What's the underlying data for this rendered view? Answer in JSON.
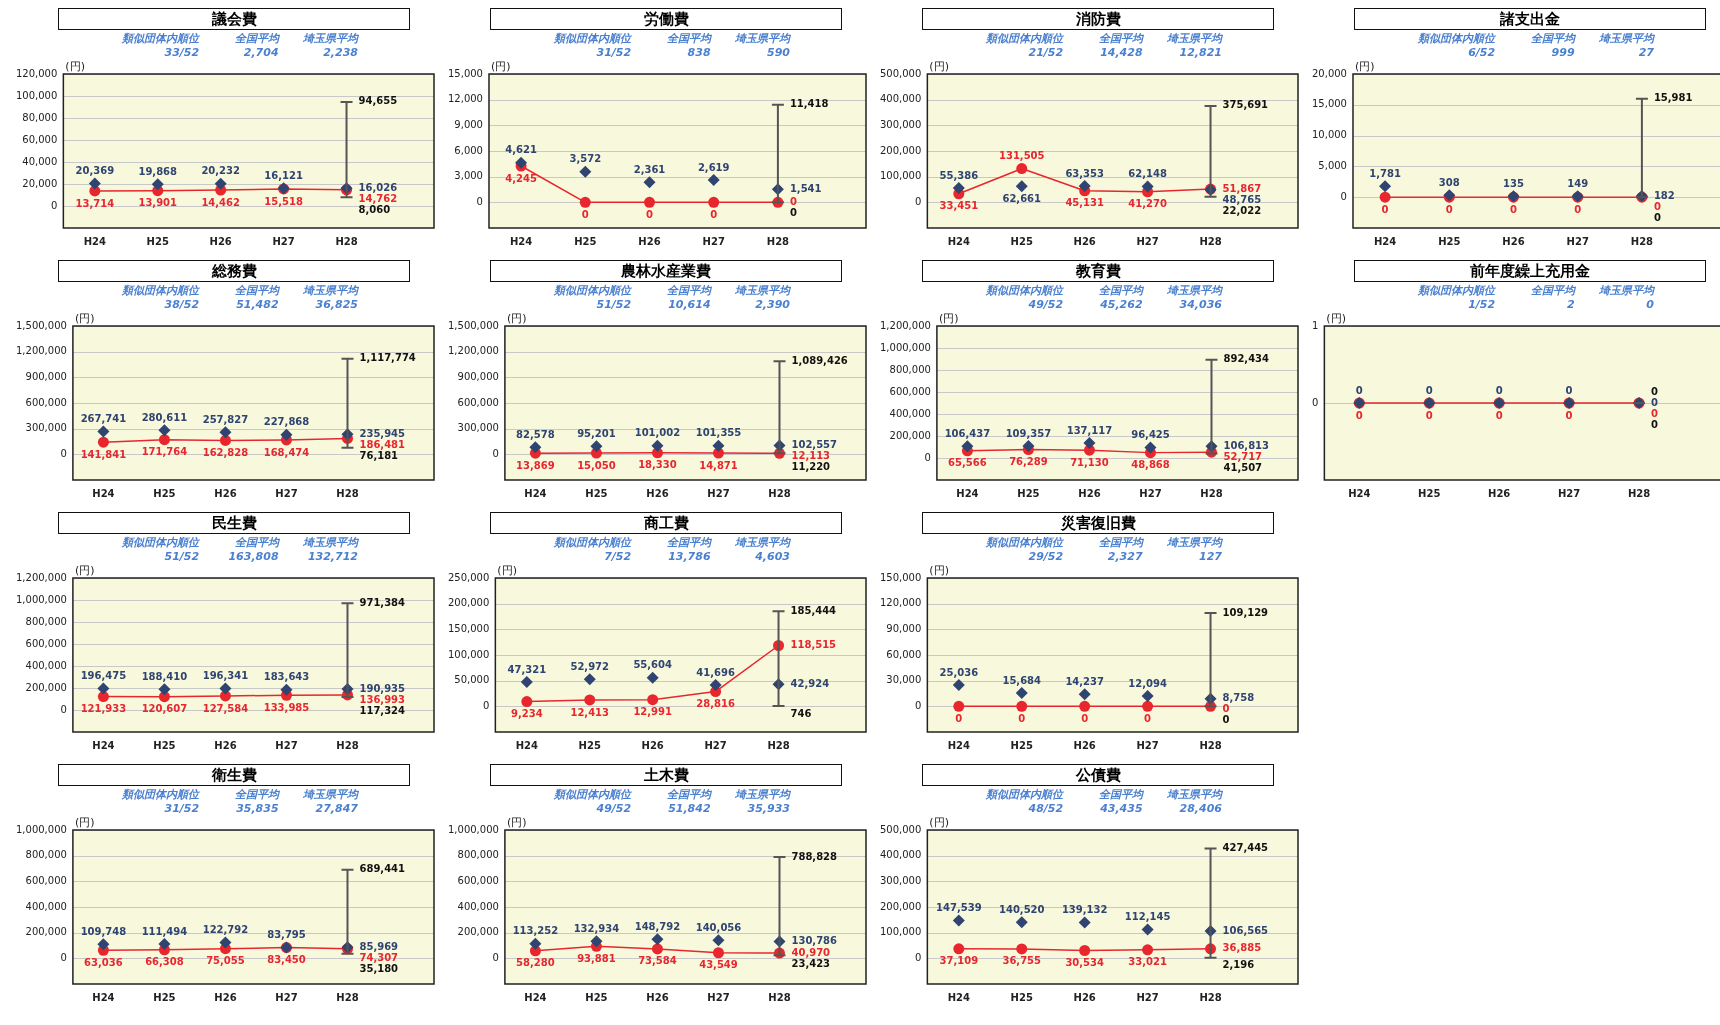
{
  "chart_data": [
    {
      "type": "line",
      "title": "議会費",
      "ylabel": "(円)",
      "categories": [
        "H24",
        "H25",
        "H26",
        "H27",
        "H28"
      ],
      "ylim": [
        -20000,
        120000
      ],
      "yticks": [
        {
          "value": 0,
          "label": "0"
        },
        {
          "value": 20000,
          "label": "20,000"
        },
        {
          "value": 40000,
          "label": "40,000"
        },
        {
          "value": 60000,
          "label": "60,000"
        },
        {
          "value": 80000,
          "label": "80,000"
        },
        {
          "value": 100000,
          "label": "100,000"
        },
        {
          "value": 120000,
          "label": "120,000"
        }
      ],
      "grid": "y",
      "legend": false,
      "series": [
        {
          "type": "scatter",
          "marker": "diamond",
          "color": "#2f4470",
          "values": [
            20369,
            19868,
            20232,
            16121,
            16026
          ],
          "value_labels": [
            "20,369",
            "19,868",
            "20,232",
            "16,121",
            "16,026"
          ],
          "errors": [
            null,
            null,
            null,
            null,
            [
              8060,
              94655
            ]
          ]
        },
        {
          "type": "line",
          "marker": "circle",
          "color": "#e8262e",
          "values": [
            13714,
            13901,
            14462,
            15518,
            14762
          ],
          "value_labels": [
            "13,714",
            "13,901",
            "14,462",
            "15,518",
            "14,762"
          ]
        }
      ],
      "annotations": [
        "類似団体内順位",
        "全国平均",
        "埼玉県平均",
        "33/52",
        "2,704",
        "2,238",
        {
          "text": "94,655",
          "x": "H28",
          "y": 94655
        },
        {
          "text": "8,060",
          "x": "H28",
          "y": 8060
        }
      ]
    },
    {
      "type": "line",
      "title": "労働費",
      "ylabel": "(円)",
      "categories": [
        "H24",
        "H25",
        "H26",
        "H27",
        "H28"
      ],
      "ylim": [
        -3000,
        15000
      ],
      "yticks": [
        {
          "value": 0,
          "label": "0"
        },
        {
          "value": 3000,
          "label": "3,000"
        },
        {
          "value": 6000,
          "label": "6,000"
        },
        {
          "value": 9000,
          "label": "9,000"
        },
        {
          "value": 12000,
          "label": "12,000"
        },
        {
          "value": 15000,
          "label": "15,000"
        }
      ],
      "grid": "y",
      "legend": false,
      "series": [
        {
          "type": "scatter",
          "marker": "diamond",
          "color": "#2f4470",
          "values": [
            4621,
            3572,
            2361,
            2619,
            1541
          ],
          "value_labels": [
            "4,621",
            "3,572",
            "2,361",
            "2,619",
            "1,541"
          ],
          "errors": [
            null,
            null,
            null,
            null,
            [
              0,
              11418
            ]
          ]
        },
        {
          "type": "line",
          "marker": "circle",
          "color": "#e8262e",
          "values": [
            4245,
            0,
            0,
            0,
            0
          ],
          "value_labels": [
            "4,245",
            "0",
            "0",
            "0",
            "0"
          ]
        }
      ],
      "annotations": [
        "類似団体内順位",
        "全国平均",
        "埼玉県平均",
        "31/52",
        "838",
        "590",
        {
          "text": "11,418",
          "x": "H28",
          "y": 11418
        },
        {
          "text": "0",
          "x": "H28",
          "y": 0
        }
      ]
    },
    {
      "type": "line",
      "title": "消防費",
      "ylabel": "(円)",
      "categories": [
        "H24",
        "H25",
        "H26",
        "H27",
        "H28"
      ],
      "ylim": [
        -100000,
        500000
      ],
      "yticks": [
        {
          "value": 0,
          "label": "0"
        },
        {
          "value": 100000,
          "label": "100,000"
        },
        {
          "value": 200000,
          "label": "200,000"
        },
        {
          "value": 300000,
          "label": "300,000"
        },
        {
          "value": 400000,
          "label": "400,000"
        },
        {
          "value": 500000,
          "label": "500,000"
        }
      ],
      "grid": "y",
      "legend": false,
      "series": [
        {
          "type": "scatter",
          "marker": "diamond",
          "color": "#2f4470",
          "values": [
            55386,
            62661,
            63353,
            62148,
            48765
          ],
          "value_labels": [
            "55,386",
            "62,661",
            "63,353",
            "62,148",
            "48,765"
          ],
          "errors": [
            null,
            null,
            null,
            null,
            [
              22022,
              375691
            ]
          ]
        },
        {
          "type": "line",
          "marker": "circle",
          "color": "#e8262e",
          "values": [
            33451,
            131505,
            45131,
            41270,
            51867
          ],
          "value_labels": [
            "33,451",
            "131,505",
            "45,131",
            "41,270",
            "51,867"
          ]
        }
      ],
      "annotations": [
        "類似団体内順位",
        "全国平均",
        "埼玉県平均",
        "21/52",
        "14,428",
        "12,821",
        {
          "text": "375,691",
          "x": "H28",
          "y": 375691
        },
        {
          "text": "22,022",
          "x": "H28",
          "y": 22022
        }
      ]
    },
    {
      "type": "line",
      "title": "諸支出金",
      "ylabel": "(円)",
      "categories": [
        "H24",
        "H25",
        "H26",
        "H27",
        "H28"
      ],
      "ylim": [
        -5000,
        20000
      ],
      "yticks": [
        {
          "value": 0,
          "label": "0"
        },
        {
          "value": 5000,
          "label": "5,000"
        },
        {
          "value": 10000,
          "label": "10,000"
        },
        {
          "value": 15000,
          "label": "15,000"
        },
        {
          "value": 20000,
          "label": "20,000"
        }
      ],
      "grid": "y",
      "legend": false,
      "series": [
        {
          "type": "scatter",
          "marker": "diamond",
          "color": "#2f4470",
          "values": [
            1781,
            308,
            135,
            149,
            182
          ],
          "value_labels": [
            "1,781",
            "308",
            "135",
            "149",
            "182"
          ],
          "errors": [
            null,
            null,
            null,
            null,
            [
              0,
              15981
            ]
          ]
        },
        {
          "type": "line",
          "marker": "circle",
          "color": "#e8262e",
          "values": [
            0,
            0,
            0,
            0,
            0
          ],
          "value_labels": [
            "0",
            "0",
            "0",
            "0",
            "0"
          ]
        }
      ],
      "annotations": [
        "類似団体内順位",
        "全国平均",
        "埼玉県平均",
        "6/52",
        "999",
        "27",
        {
          "text": "15,981",
          "x": "H28",
          "y": 15981
        },
        {
          "text": "0",
          "x": "H28",
          "y": 0
        }
      ]
    },
    {
      "type": "line",
      "title": "総務費",
      "ylabel": "(円)",
      "categories": [
        "H24",
        "H25",
        "H26",
        "H27",
        "H28"
      ],
      "ylim": [
        -300000,
        1500000
      ],
      "yticks": [
        {
          "value": 0,
          "label": "0"
        },
        {
          "value": 300000,
          "label": "300,000"
        },
        {
          "value": 600000,
          "label": "600,000"
        },
        {
          "value": 900000,
          "label": "900,000"
        },
        {
          "value": 1200000,
          "label": "1,200,000"
        },
        {
          "value": 1500000,
          "label": "1,500,000"
        }
      ],
      "grid": "y",
      "legend": false,
      "series": [
        {
          "type": "scatter",
          "marker": "diamond",
          "color": "#2f4470",
          "values": [
            267741,
            280611,
            257827,
            227868,
            235945
          ],
          "value_labels": [
            "267,741",
            "280,611",
            "257,827",
            "227,868",
            "235,945"
          ],
          "errors": [
            null,
            null,
            null,
            null,
            [
              76181,
              1117774
            ]
          ]
        },
        {
          "type": "line",
          "marker": "circle",
          "color": "#e8262e",
          "values": [
            141841,
            171764,
            162828,
            168474,
            186481
          ],
          "value_labels": [
            "141,841",
            "171,764",
            "162,828",
            "168,474",
            "186,481"
          ]
        }
      ],
      "annotations": [
        "類似団体内順位",
        "全国平均",
        "埼玉県平均",
        "38/52",
        "51,482",
        "36,825",
        {
          "text": "1,117,774",
          "x": "H28",
          "y": 1117774
        },
        {
          "text": "76,181",
          "x": "H28",
          "y": 76181
        }
      ]
    },
    {
      "type": "line",
      "title": "農林水産業費",
      "ylabel": "(円)",
      "categories": [
        "H24",
        "H25",
        "H26",
        "H27",
        "H28"
      ],
      "ylim": [
        -300000,
        1500000
      ],
      "yticks": [
        {
          "value": 0,
          "label": "0"
        },
        {
          "value": 300000,
          "label": "300,000"
        },
        {
          "value": 600000,
          "label": "600,000"
        },
        {
          "value": 900000,
          "label": "900,000"
        },
        {
          "value": 1200000,
          "label": "1,200,000"
        },
        {
          "value": 1500000,
          "label": "1,500,000"
        }
      ],
      "grid": "y",
      "legend": false,
      "series": [
        {
          "type": "scatter",
          "marker": "diamond",
          "color": "#2f4470",
          "values": [
            82578,
            95201,
            101002,
            101355,
            102557
          ],
          "value_labels": [
            "82,578",
            "95,201",
            "101,002",
            "101,355",
            "102,557"
          ],
          "errors": [
            null,
            null,
            null,
            null,
            [
              11220,
              1089426
            ]
          ]
        },
        {
          "type": "line",
          "marker": "circle",
          "color": "#e8262e",
          "values": [
            13869,
            15050,
            18330,
            14871,
            12113
          ],
          "value_labels": [
            "13,869",
            "15,050",
            "18,330",
            "14,871",
            "12,113"
          ]
        }
      ],
      "annotations": [
        "類似団体内順位",
        "全国平均",
        "埼玉県平均",
        "51/52",
        "10,614",
        "2,390",
        {
          "text": "1,089,426",
          "x": "H28",
          "y": 1089426
        },
        {
          "text": "11,220",
          "x": "H28",
          "y": 11220
        }
      ]
    },
    {
      "type": "line",
      "title": "教育費",
      "ylabel": "(円)",
      "categories": [
        "H24",
        "H25",
        "H26",
        "H27",
        "H28"
      ],
      "ylim": [
        -200000,
        1200000
      ],
      "yticks": [
        {
          "value": 0,
          "label": "0"
        },
        {
          "value": 200000,
          "label": "200,000"
        },
        {
          "value": 400000,
          "label": "400,000"
        },
        {
          "value": 600000,
          "label": "600,000"
        },
        {
          "value": 800000,
          "label": "800,000"
        },
        {
          "value": 1000000,
          "label": "1,000,000"
        },
        {
          "value": 1200000,
          "label": "1,200,000"
        }
      ],
      "grid": "y",
      "legend": false,
      "series": [
        {
          "type": "scatter",
          "marker": "diamond",
          "color": "#2f4470",
          "values": [
            106437,
            109357,
            137117,
            96425,
            106813
          ],
          "value_labels": [
            "106,437",
            "109,357",
            "137,117",
            "96,425",
            "106,813"
          ],
          "errors": [
            null,
            null,
            null,
            null,
            [
              41507,
              892434
            ]
          ]
        },
        {
          "type": "line",
          "marker": "circle",
          "color": "#e8262e",
          "values": [
            65566,
            76289,
            71130,
            48868,
            52717
          ],
          "value_labels": [
            "65,566",
            "76,289",
            "71,130",
            "48,868",
            "52,717"
          ]
        }
      ],
      "annotations": [
        "類似団体内順位",
        "全国平均",
        "埼玉県平均",
        "49/52",
        "45,262",
        "34,036",
        {
          "text": "892,434",
          "x": "H28",
          "y": 892434
        },
        {
          "text": "41,507",
          "x": "H28",
          "y": 41507
        }
      ]
    },
    {
      "type": "line",
      "title": "前年度繰上充用金",
      "ylabel": "(円)",
      "categories": [
        "H24",
        "H25",
        "H26",
        "H27",
        "H28"
      ],
      "ylim": [
        -1,
        1
      ],
      "yticks": [
        {
          "value": 0,
          "label": "0"
        },
        {
          "value": 1,
          "label": "1"
        }
      ],
      "grid": "y",
      "legend": false,
      "series": [
        {
          "type": "scatter",
          "marker": "diamond",
          "color": "#2f4470",
          "values": [
            0,
            0,
            0,
            0,
            0
          ],
          "value_labels": [
            "0",
            "0",
            "0",
            "0",
            "0"
          ],
          "errors": [
            null,
            null,
            null,
            null,
            [
              0,
              0
            ]
          ]
        },
        {
          "type": "line",
          "marker": "circle",
          "color": "#e8262e",
          "values": [
            0,
            0,
            0,
            0,
            0
          ],
          "value_labels": [
            "0",
            "0",
            "0",
            "0",
            "0"
          ]
        }
      ],
      "annotations": [
        "類似団体内順位",
        "全国平均",
        "埼玉県平均",
        "1/52",
        "2",
        "0",
        {
          "text": "0",
          "x": "H28",
          "y": 0
        },
        {
          "text": "0",
          "x": "H28",
          "y": 0
        }
      ]
    },
    {
      "type": "line",
      "title": "民生費",
      "ylabel": "(円)",
      "categories": [
        "H24",
        "H25",
        "H26",
        "H27",
        "H28"
      ],
      "ylim": [
        -200000,
        1200000
      ],
      "yticks": [
        {
          "value": 0,
          "label": "0"
        },
        {
          "value": 200000,
          "label": "200,000"
        },
        {
          "value": 400000,
          "label": "400,000"
        },
        {
          "value": 600000,
          "label": "600,000"
        },
        {
          "value": 800000,
          "label": "800,000"
        },
        {
          "value": 1000000,
          "label": "1,000,000"
        },
        {
          "value": 1200000,
          "label": "1,200,000"
        }
      ],
      "grid": "y",
      "legend": false,
      "series": [
        {
          "type": "scatter",
          "marker": "diamond",
          "color": "#2f4470",
          "values": [
            196475,
            188410,
            196341,
            183643,
            190935
          ],
          "value_labels": [
            "196,475",
            "188,410",
            "196,341",
            "183,643",
            "190,935"
          ],
          "errors": [
            null,
            null,
            null,
            null,
            [
              117324,
              971384
            ]
          ]
        },
        {
          "type": "line",
          "marker": "circle",
          "color": "#e8262e",
          "values": [
            121933,
            120607,
            127584,
            133985,
            136993
          ],
          "value_labels": [
            "121,933",
            "120,607",
            "127,584",
            "133,985",
            "136,993"
          ]
        }
      ],
      "annotations": [
        "類似団体内順位",
        "全国平均",
        "埼玉県平均",
        "51/52",
        "163,808",
        "132,712",
        {
          "text": "971,384",
          "x": "H28",
          "y": 971384
        },
        {
          "text": "117,324",
          "x": "H28",
          "y": 117324
        }
      ]
    },
    {
      "type": "line",
      "title": "商工費",
      "ylabel": "(円)",
      "categories": [
        "H24",
        "H25",
        "H26",
        "H27",
        "H28"
      ],
      "ylim": [
        -50000,
        250000
      ],
      "yticks": [
        {
          "value": 0,
          "label": "0"
        },
        {
          "value": 50000,
          "label": "50,000"
        },
        {
          "value": 100000,
          "label": "100,000"
        },
        {
          "value": 150000,
          "label": "150,000"
        },
        {
          "value": 200000,
          "label": "200,000"
        },
        {
          "value": 250000,
          "label": "250,000"
        }
      ],
      "grid": "y",
      "legend": false,
      "series": [
        {
          "type": "scatter",
          "marker": "diamond",
          "color": "#2f4470",
          "values": [
            47321,
            52972,
            55604,
            41696,
            42924
          ],
          "value_labels": [
            "47,321",
            "52,972",
            "55,604",
            "41,696",
            "42,924"
          ],
          "errors": [
            null,
            null,
            null,
            null,
            [
              746,
              185444
            ]
          ]
        },
        {
          "type": "line",
          "marker": "circle",
          "color": "#e8262e",
          "values": [
            9234,
            12413,
            12991,
            28816,
            118515
          ],
          "value_labels": [
            "9,234",
            "12,413",
            "12,991",
            "28,816",
            "118,515"
          ]
        }
      ],
      "annotations": [
        "類似団体内順位",
        "全国平均",
        "埼玉県平均",
        "7/52",
        "13,786",
        "4,603",
        {
          "text": "185,444",
          "x": "H28",
          "y": 185444
        },
        {
          "text": "746",
          "x": "H28",
          "y": 746
        }
      ]
    },
    {
      "type": "line",
      "title": "災害復旧費",
      "ylabel": "(円)",
      "categories": [
        "H24",
        "H25",
        "H26",
        "H27",
        "H28"
      ],
      "ylim": [
        -30000,
        150000
      ],
      "yticks": [
        {
          "value": 0,
          "label": "0"
        },
        {
          "value": 30000,
          "label": "30,000"
        },
        {
          "value": 60000,
          "label": "60,000"
        },
        {
          "value": 90000,
          "label": "90,000"
        },
        {
          "value": 120000,
          "label": "120,000"
        },
        {
          "value": 150000,
          "label": "150,000"
        }
      ],
      "grid": "y",
      "legend": false,
      "series": [
        {
          "type": "scatter",
          "marker": "diamond",
          "color": "#2f4470",
          "values": [
            25036,
            15684,
            14237,
            12094,
            8758
          ],
          "value_labels": [
            "25,036",
            "15,684",
            "14,237",
            "12,094",
            "8,758"
          ],
          "errors": [
            null,
            null,
            null,
            null,
            [
              0,
              109129
            ]
          ]
        },
        {
          "type": "line",
          "marker": "circle",
          "color": "#e8262e",
          "values": [
            0,
            0,
            0,
            0,
            0
          ],
          "value_labels": [
            "0",
            "0",
            "0",
            "0",
            "0"
          ]
        }
      ],
      "annotations": [
        "類似団体内順位",
        "全国平均",
        "埼玉県平均",
        "29/52",
        "2,327",
        "127",
        {
          "text": "109,129",
          "x": "H28",
          "y": 109129
        },
        {
          "text": "0",
          "x": "H28",
          "y": 0
        }
      ]
    },
    {
      "type": "line",
      "title": "衛生費",
      "ylabel": "(円)",
      "categories": [
        "H24",
        "H25",
        "H26",
        "H27",
        "H28"
      ],
      "ylim": [
        -200000,
        1000000
      ],
      "yticks": [
        {
          "value": 0,
          "label": "0"
        },
        {
          "value": 200000,
          "label": "200,000"
        },
        {
          "value": 400000,
          "label": "400,000"
        },
        {
          "value": 600000,
          "label": "600,000"
        },
        {
          "value": 800000,
          "label": "800,000"
        },
        {
          "value": 1000000,
          "label": "1,000,000"
        }
      ],
      "grid": "y",
      "legend": false,
      "series": [
        {
          "type": "scatter",
          "marker": "diamond",
          "color": "#2f4470",
          "values": [
            109748,
            111494,
            122792,
            83795,
            85969
          ],
          "value_labels": [
            "109,748",
            "111,494",
            "122,792",
            "83,795",
            "85,969"
          ],
          "errors": [
            null,
            null,
            null,
            null,
            [
              35180,
              689441
            ]
          ]
        },
        {
          "type": "line",
          "marker": "circle",
          "color": "#e8262e",
          "values": [
            63036,
            66308,
            75055,
            83450,
            74307
          ],
          "value_labels": [
            "63,036",
            "66,308",
            "75,055",
            "83,450",
            "74,307"
          ]
        }
      ],
      "annotations": [
        "類似団体内順位",
        "全国平均",
        "埼玉県平均",
        "31/52",
        "35,835",
        "27,847",
        {
          "text": "689,441",
          "x": "H28",
          "y": 689441
        },
        {
          "text": "35,180",
          "x": "H28",
          "y": 35180
        }
      ]
    },
    {
      "type": "line",
      "title": "土木費",
      "ylabel": "(円)",
      "categories": [
        "H24",
        "H25",
        "H26",
        "H27",
        "H28"
      ],
      "ylim": [
        -200000,
        1000000
      ],
      "yticks": [
        {
          "value": 0,
          "label": "0"
        },
        {
          "value": 200000,
          "label": "200,000"
        },
        {
          "value": 400000,
          "label": "400,000"
        },
        {
          "value": 600000,
          "label": "600,000"
        },
        {
          "value": 800000,
          "label": "800,000"
        },
        {
          "value": 1000000,
          "label": "1,000,000"
        }
      ],
      "grid": "y",
      "legend": false,
      "series": [
        {
          "type": "scatter",
          "marker": "diamond",
          "color": "#2f4470",
          "values": [
            113252,
            132934,
            148792,
            140056,
            130786
          ],
          "value_labels": [
            "113,252",
            "132,934",
            "148,792",
            "140,056",
            "130,786"
          ],
          "errors": [
            null,
            null,
            null,
            null,
            [
              23423,
              788828
            ]
          ]
        },
        {
          "type": "line",
          "marker": "circle",
          "color": "#e8262e",
          "values": [
            58280,
            93881,
            73584,
            43549,
            40970
          ],
          "value_labels": [
            "58,280",
            "93,881",
            "73,584",
            "43,549",
            "40,970"
          ]
        }
      ],
      "annotations": [
        "類似団体内順位",
        "全国平均",
        "埼玉県平均",
        "49/52",
        "51,842",
        "35,933",
        {
          "text": "788,828",
          "x": "H28",
          "y": 788828
        },
        {
          "text": "23,423",
          "x": "H28",
          "y": 23423
        }
      ]
    },
    {
      "type": "line",
      "title": "公債費",
      "ylabel": "(円)",
      "categories": [
        "H24",
        "H25",
        "H26",
        "H27",
        "H28"
      ],
      "ylim": [
        -100000,
        500000
      ],
      "yticks": [
        {
          "value": 0,
          "label": "0"
        },
        {
          "value": 100000,
          "label": "100,000"
        },
        {
          "value": 200000,
          "label": "200,000"
        },
        {
          "value": 300000,
          "label": "300,000"
        },
        {
          "value": 400000,
          "label": "400,000"
        },
        {
          "value": 500000,
          "label": "500,000"
        }
      ],
      "grid": "y",
      "legend": false,
      "series": [
        {
          "type": "scatter",
          "marker": "diamond",
          "color": "#2f4470",
          "values": [
            147539,
            140520,
            139132,
            112145,
            106565
          ],
          "value_labels": [
            "147,539",
            "140,520",
            "139,132",
            "112,145",
            "106,565"
          ],
          "errors": [
            null,
            null,
            null,
            null,
            [
              2196,
              427445
            ]
          ]
        },
        {
          "type": "line",
          "marker": "circle",
          "color": "#e8262e",
          "values": [
            37109,
            36755,
            30534,
            33021,
            36885
          ],
          "value_labels": [
            "37,109",
            "36,755",
            "30,534",
            "33,021",
            "36,885"
          ]
        }
      ],
      "annotations": [
        "類似団体内順位",
        "全国平均",
        "埼玉県平均",
        "48/52",
        "43,435",
        "28,406",
        {
          "text": "427,445",
          "x": "H28",
          "y": 427445
        },
        {
          "text": "2,196",
          "x": "H28",
          "y": 2196
        }
      ]
    }
  ]
}
